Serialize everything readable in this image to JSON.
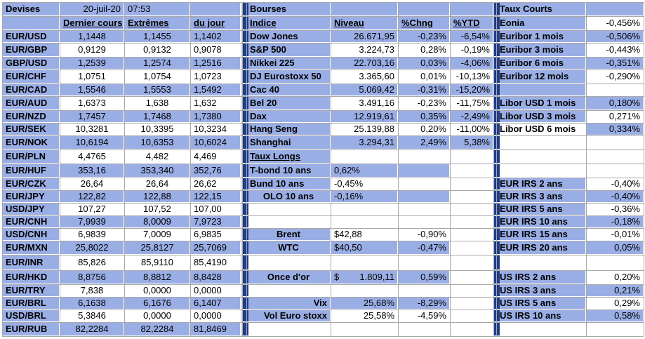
{
  "header": {
    "devises": "Devises",
    "date": "20-juil-20",
    "time": "07:53",
    "bourses": "Bourses",
    "taux_courts": "Taux Courts"
  },
  "fx_headers": [
    "Dernier cours",
    "Extrêmes",
    "du jour"
  ],
  "idx_headers": [
    "Indice",
    "Niveau",
    "%Chng",
    "%YTD"
  ],
  "fx_rows": [
    {
      "pair": "EUR/USD",
      "last": "1,1448",
      "high": "1,1455",
      "low": "1,1402"
    },
    {
      "pair": "EUR/GBP",
      "last": "0,9129",
      "high": "0,9132",
      "low": "0,9078"
    },
    {
      "pair": "GBP/USD",
      "last": "1,2539",
      "high": "1,2574",
      "low": "1,2516"
    },
    {
      "pair": "EUR/CHF",
      "last": "1,0751",
      "high": "1,0754",
      "low": "1,0723"
    },
    {
      "pair": "EUR/CAD",
      "last": "1,5546",
      "high": "1,5553",
      "low": "1,5492"
    },
    {
      "pair": "EUR/AUD",
      "last": "1,6373",
      "high": "1,638",
      "low": "1,632"
    },
    {
      "pair": "EUR/NZD",
      "last": "1,7457",
      "high": "1,7468",
      "low": "1,7380"
    },
    {
      "pair": "EUR/SEK",
      "last": "10,3281",
      "high": "10,3395",
      "low": "10,3234"
    },
    {
      "pair": "EUR/NOK",
      "last": "10,6194",
      "high": "10,6353",
      "low": "10,6024"
    },
    {
      "pair": "EUR/PLN",
      "last": "4,4765",
      "high": "4,482",
      "low": "4,469"
    },
    {
      "pair": "EUR/HUF",
      "last": "353,16",
      "high": "353,340",
      "low": "352,76"
    },
    {
      "pair": "EUR/CZK",
      "last": "26,64",
      "high": "26,64",
      "low": "26,62"
    },
    {
      "pair": "EUR/JPY",
      "last": "122,82",
      "high": "122,88",
      "low": "122,15"
    },
    {
      "pair": "USD/JPY",
      "last": "107,27",
      "high": "107,52",
      "low": "107,00"
    },
    {
      "pair": "EUR/CNH",
      "last": "7,9939",
      "high": "8,0009",
      "low": "7,9723"
    },
    {
      "pair": "USD/CNH",
      "last": "6,9839",
      "high": "7,0009",
      "low": "6,9835"
    },
    {
      "pair": "EUR/MXN",
      "last": "25,8022",
      "high": "25,8127",
      "low": "25,7069"
    },
    {
      "pair": "EUR/INR",
      "last": "85,826",
      "high": "85,9110",
      "low": "85,4190"
    },
    {
      "pair": "EUR/HKD",
      "last": "8,8756",
      "high": "8,8812",
      "low": "8,8428"
    },
    {
      "pair": "EUR/TRY",
      "last": "7,838",
      "high": "0,0000",
      "low": "0,0000"
    },
    {
      "pair": "EUR/BRL",
      "last": "6,1638",
      "high": "6,1676",
      "low": "6,1407"
    },
    {
      "pair": "USD/BRL",
      "last": "5,3846",
      "high": "0,0000",
      "low": "0,0000"
    },
    {
      "pair": "EUR/RUB",
      "last": "82,2284",
      "high": "82,2284",
      "low": "81,8469"
    }
  ],
  "indices": [
    {
      "name": "Dow Jones",
      "level": "26.671,95",
      "chng": "-0,23%",
      "ytd": "-6,54%"
    },
    {
      "name": "S&P 500",
      "level": "3.224,73",
      "chng": "0,28%",
      "ytd": "-0,19%"
    },
    {
      "name": "Nikkei 225",
      "level": "22.703,16",
      "chng": "0,03%",
      "ytd": "-4,06%"
    },
    {
      "name": "DJ Eurostoxx 50",
      "level": "3.365,60",
      "chng": "0,01%",
      "ytd": "-10,13%"
    },
    {
      "name": "Cac 40",
      "level": "5.069,42",
      "chng": "-0,31%",
      "ytd": "-15,20%"
    },
    {
      "name": "Bel 20",
      "level": "3.491,16",
      "chng": "-0,23%",
      "ytd": "-11,75%"
    },
    {
      "name": "Dax",
      "level": "12.919,61",
      "chng": "0,35%",
      "ytd": "-2,49%"
    },
    {
      "name": "Hang Seng",
      "level": "25.139,88",
      "chng": "0,20%",
      "ytd": "-11,00%"
    },
    {
      "name": "Shanghai",
      "level": "3.294,31",
      "chng": "2,49%",
      "ytd": "5,38%"
    }
  ],
  "taux_longs": {
    "title": "Taux Longs",
    "rows": [
      {
        "name": "T-bond 10 ans",
        "value": "0,62%"
      },
      {
        "name": "Bund 10 ans",
        "value": "-0,45%"
      },
      {
        "name": "OLO 10 ans",
        "value": "-0,16%"
      }
    ]
  },
  "commodities": [
    {
      "name": "Brent",
      "value": "$42,88",
      "chng": "-0,90%"
    },
    {
      "name": "WTC",
      "value": "$40,50",
      "chng": "-0,47%"
    },
    {
      "name": "Once d'or",
      "currency": "$",
      "value": "1.809,11",
      "chng": "0,59%"
    },
    {
      "name": "Vix",
      "value": "25,68%",
      "chng": "-8,29%"
    },
    {
      "name": "Vol Euro stoxx",
      "value": "25,58%",
      "chng": "-4,59%"
    }
  ],
  "short_rates": [
    {
      "name": "Eonia",
      "value": "-0,456%"
    },
    {
      "name": "Euribor 1 mois",
      "value": "-0,506%"
    },
    {
      "name": "Euribor 3 mois",
      "value": "-0,443%"
    },
    {
      "name": "Euribor 6 mois",
      "value": "-0,351%"
    },
    {
      "name": "Euribor 12 mois",
      "value": "-0,290%"
    },
    {
      "name": "Libor USD 1 mois",
      "value": "0,180%"
    },
    {
      "name": "Libor USD 3 mois",
      "value": "0,271%"
    },
    {
      "name": "Libor USD 6 mois",
      "value": "0,334%"
    }
  ],
  "eur_irs": [
    {
      "name": "EUR IRS 2 ans",
      "value": "-0,40%"
    },
    {
      "name": "EUR IRS 3 ans",
      "value": "-0,40%"
    },
    {
      "name": "EUR IRS 5 ans",
      "value": "-0,36%"
    },
    {
      "name": "EUR IRS 10 ans",
      "value": "-0,18%"
    },
    {
      "name": "EUR IRS 15 ans",
      "value": "-0,01%"
    },
    {
      "name": "EUR IRS 20 ans",
      "value": "0,05%"
    }
  ],
  "us_irs": [
    {
      "name": "US IRS 2 ans",
      "value": "0,20%"
    },
    {
      "name": "US IRS 3 ans",
      "value": "0,21%"
    },
    {
      "name": "US IRS 5 ans",
      "value": "0,29%"
    },
    {
      "name": "US IRS 10 ans",
      "value": "0,58%"
    }
  ],
  "colors": {
    "highlight": "#9aaee6",
    "separator": "#1e3d8c",
    "grid": "#a9a9a9"
  }
}
